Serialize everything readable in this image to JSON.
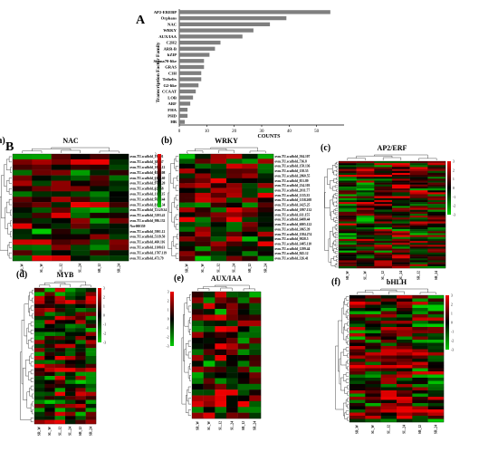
{
  "panel_A": {
    "letter": "A",
    "chart_data": {
      "type": "bar",
      "orientation": "horizontal",
      "categories": [
        "AP2-EREBP",
        "Orphans",
        "NAC",
        "WRKY",
        "AUX/IAA",
        "C2H2",
        "ARR-B",
        "bZIP",
        "Sigma70-like",
        "GRAS",
        "C3H",
        "Trihelix",
        "G2-like",
        "CCAAT",
        "LOB",
        "ARF",
        "FHA",
        "PHD",
        "HB"
      ],
      "values": [
        55,
        39,
        33,
        27,
        23,
        15,
        13,
        11,
        9,
        9,
        8,
        8,
        7,
        6,
        5,
        4,
        3,
        3,
        2
      ],
      "xlabel": "COUNTS",
      "ylabel": "Transcription Factor Family",
      "xlim": [
        0,
        60
      ],
      "xticks": [
        "0",
        "10",
        "20",
        "30",
        "40",
        "50"
      ],
      "grid": false
    }
  },
  "panel_B": {
    "letter": "B",
    "heatmaps": [
      {
        "letter": "(a)",
        "title": "NAC",
        "rows": 20,
        "cols": 6,
        "x": 14,
        "y": 170,
        "w": 128,
        "h": 118,
        "legend": "right",
        "columns": [
          "SR_W",
          "SL_W",
          "SL_12",
          "SL_24",
          "SR_12",
          "SR_24"
        ],
        "row_labels": [
          "ovm.TU.scaffold_19.101",
          "ovm.TU.scaffold_394.57",
          "ovm.TU.scaffold_1004.12",
          "ovm.TU.scaffold_655.108",
          "ovm.TU.scaffold_6326.60",
          "ovm.TU.scaffold_9754.20",
          "ovm.TU.scaffold_622.58",
          "ovm.TU.scaffold_1195.35",
          "ovm.TU.scaffold_764.144",
          "ovm.TU.scaffold_8157.34",
          "ovm.TU.scaffold_12129.34",
          "ovm.TU.scaffold_5293.41",
          "ovm.TU.scaffold_986.132",
          "Nov000359",
          "ovm.TU.scaffold_5901.12",
          "ovm.TU.scaffold_5319.50",
          "ovm.TU.scaffold_460.116",
          "ovm.TU.scaffold_1108.63",
          "ovm.TU.scaffold_1787.119",
          "ovm.TU.scaffold_473.79"
        ]
      },
      {
        "letter": "(b)",
        "title": "WRKY",
        "rows": 22,
        "cols": 6,
        "x": 198,
        "y": 170,
        "w": 104,
        "h": 118,
        "legend": "left",
        "columns": [
          "SR_W",
          "SL_W",
          "SL_12",
          "SL_24",
          "SR_12",
          "SR_24"
        ],
        "row_labels": [
          "ovm.TU.scaffold_504.107",
          "ovm.TU.scaffold_736.8",
          "ovm.TU.scaffold_158.136",
          "ovm.TU.scaffold_158.55",
          "ovm.TU.scaffold_2860.55",
          "ovm.TU.scaffold_851.89",
          "ovm.TU.scaffold_234.103",
          "ovm.TU.scaffold_2011.77",
          "ovm.TU.scaffold_1135.35",
          "ovm.TU.scaffold_1158.208",
          "ovm.TU.scaffold_1425.25",
          "ovm.TU.scaffold_1897.132",
          "ovm.TU.scaffold_611.155",
          "ovm.TU.scaffold_6488.44",
          "ovm.TU.scaffold_6005.122",
          "ovm.TU.scaffold_3865.39",
          "ovm.TU.scaffold_1584.274",
          "ovm.TU.scaffold_9828.5",
          "ovm.TU.scaffold_1485.110",
          "ovm.TU.scaffold_1299.44",
          "ovm.TU.scaffold_845.12",
          "ovm.TU.scaffold_326.41"
        ]
      },
      {
        "letter": "(c)",
        "title": "AP2/ERF",
        "rows": 55,
        "cols": 6,
        "x": 374,
        "y": 178,
        "w": 118,
        "h": 118,
        "legend": "right",
        "columns": [
          "SR_W",
          "SL_W",
          "SL_12",
          "SL_24",
          "SR_12",
          "SR_24"
        ],
        "row_labels": []
      },
      {
        "letter": "(d)",
        "title": "MYB",
        "rows": 34,
        "cols": 6,
        "x": 38,
        "y": 318,
        "w": 68,
        "h": 150,
        "legend": "right",
        "columns": [
          "SR_W",
          "SL_W",
          "SL_12",
          "SL_24",
          "SR_12",
          "SR_24"
        ],
        "row_labels": []
      },
      {
        "letter": "(e)",
        "title": "AUX/IAA",
        "rows": 22,
        "cols": 6,
        "x": 212,
        "y": 322,
        "w": 76,
        "h": 140,
        "legend": "left",
        "columns": [
          "SR_W",
          "SL_W",
          "SL_12",
          "SL_24",
          "SR_12",
          "SR_24"
        ],
        "row_labels": []
      },
      {
        "letter": "(f)",
        "title": "bHLH",
        "rows": 40,
        "cols": 6,
        "x": 386,
        "y": 326,
        "w": 104,
        "h": 140,
        "legend": "right",
        "columns": [
          "SR_W",
          "SL_W",
          "SL_12",
          "SL_24",
          "SR_12",
          "SR_24"
        ],
        "row_labels": []
      }
    ],
    "color_scale": {
      "low": "#00cc00",
      "mid": "#000000",
      "high": "#ee0000",
      "ticks": [
        "3",
        "2",
        "1",
        "0",
        "-1",
        "-2",
        "-3"
      ]
    }
  }
}
